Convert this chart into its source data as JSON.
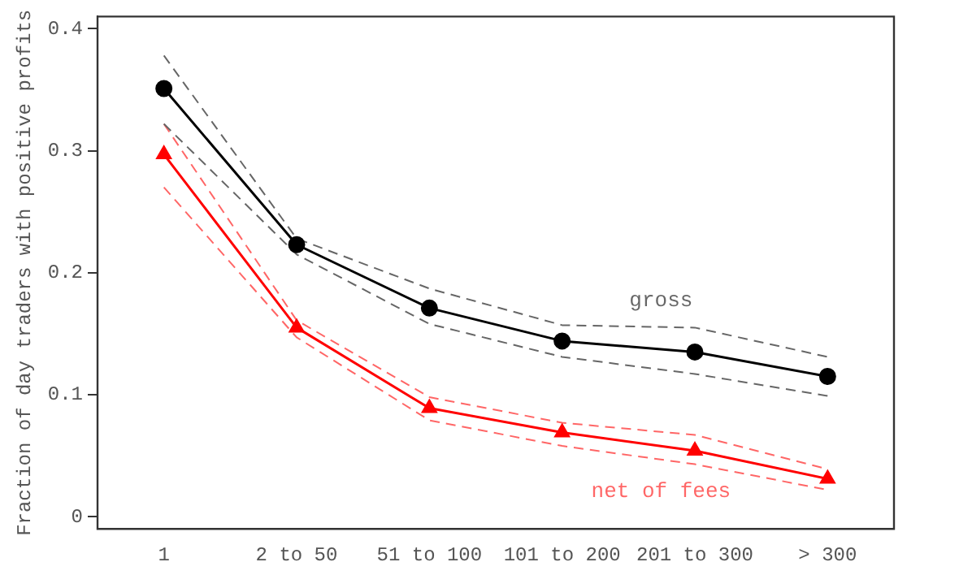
{
  "chart_data": {
    "type": "line",
    "ylabel": "Fraction of day traders with positive profits",
    "categories": [
      "1",
      "2 to 50",
      "51 to 100",
      "101 to 200",
      "201 to 300",
      "> 300"
    ],
    "series": [
      {
        "name": "gross",
        "color": "#000000",
        "marker": "circle",
        "line_style": "solid",
        "values": [
          0.351,
          0.223,
          0.171,
          0.144,
          0.135,
          0.115
        ]
      },
      {
        "color": "#666666",
        "marker": "none",
        "line_style": "dashed",
        "values": [
          0.378,
          0.228,
          0.187,
          0.157,
          0.155,
          0.131
        ]
      },
      {
        "color": "#666666",
        "marker": "none",
        "line_style": "dashed",
        "values": [
          0.322,
          0.215,
          0.158,
          0.131,
          0.117,
          0.099
        ]
      },
      {
        "name": "net of fees",
        "color": "#ff0000",
        "marker": "triangle",
        "line_style": "solid",
        "values": [
          0.297,
          0.155,
          0.089,
          0.069,
          0.054,
          0.031
        ]
      },
      {
        "color": "#ff6666",
        "marker": "none",
        "line_style": "dashed",
        "values": [
          0.322,
          0.161,
          0.098,
          0.077,
          0.067,
          0.039
        ]
      },
      {
        "color": "#ff6666",
        "marker": "none",
        "line_style": "dashed",
        "values": [
          0.27,
          0.147,
          0.079,
          0.058,
          0.043,
          0.022
        ]
      }
    ],
    "ylim": [
      -0.01,
      0.41
    ],
    "yticks": [
      0,
      0.1,
      0.2,
      0.3,
      0.4
    ],
    "grid": false,
    "legend": false
  }
}
